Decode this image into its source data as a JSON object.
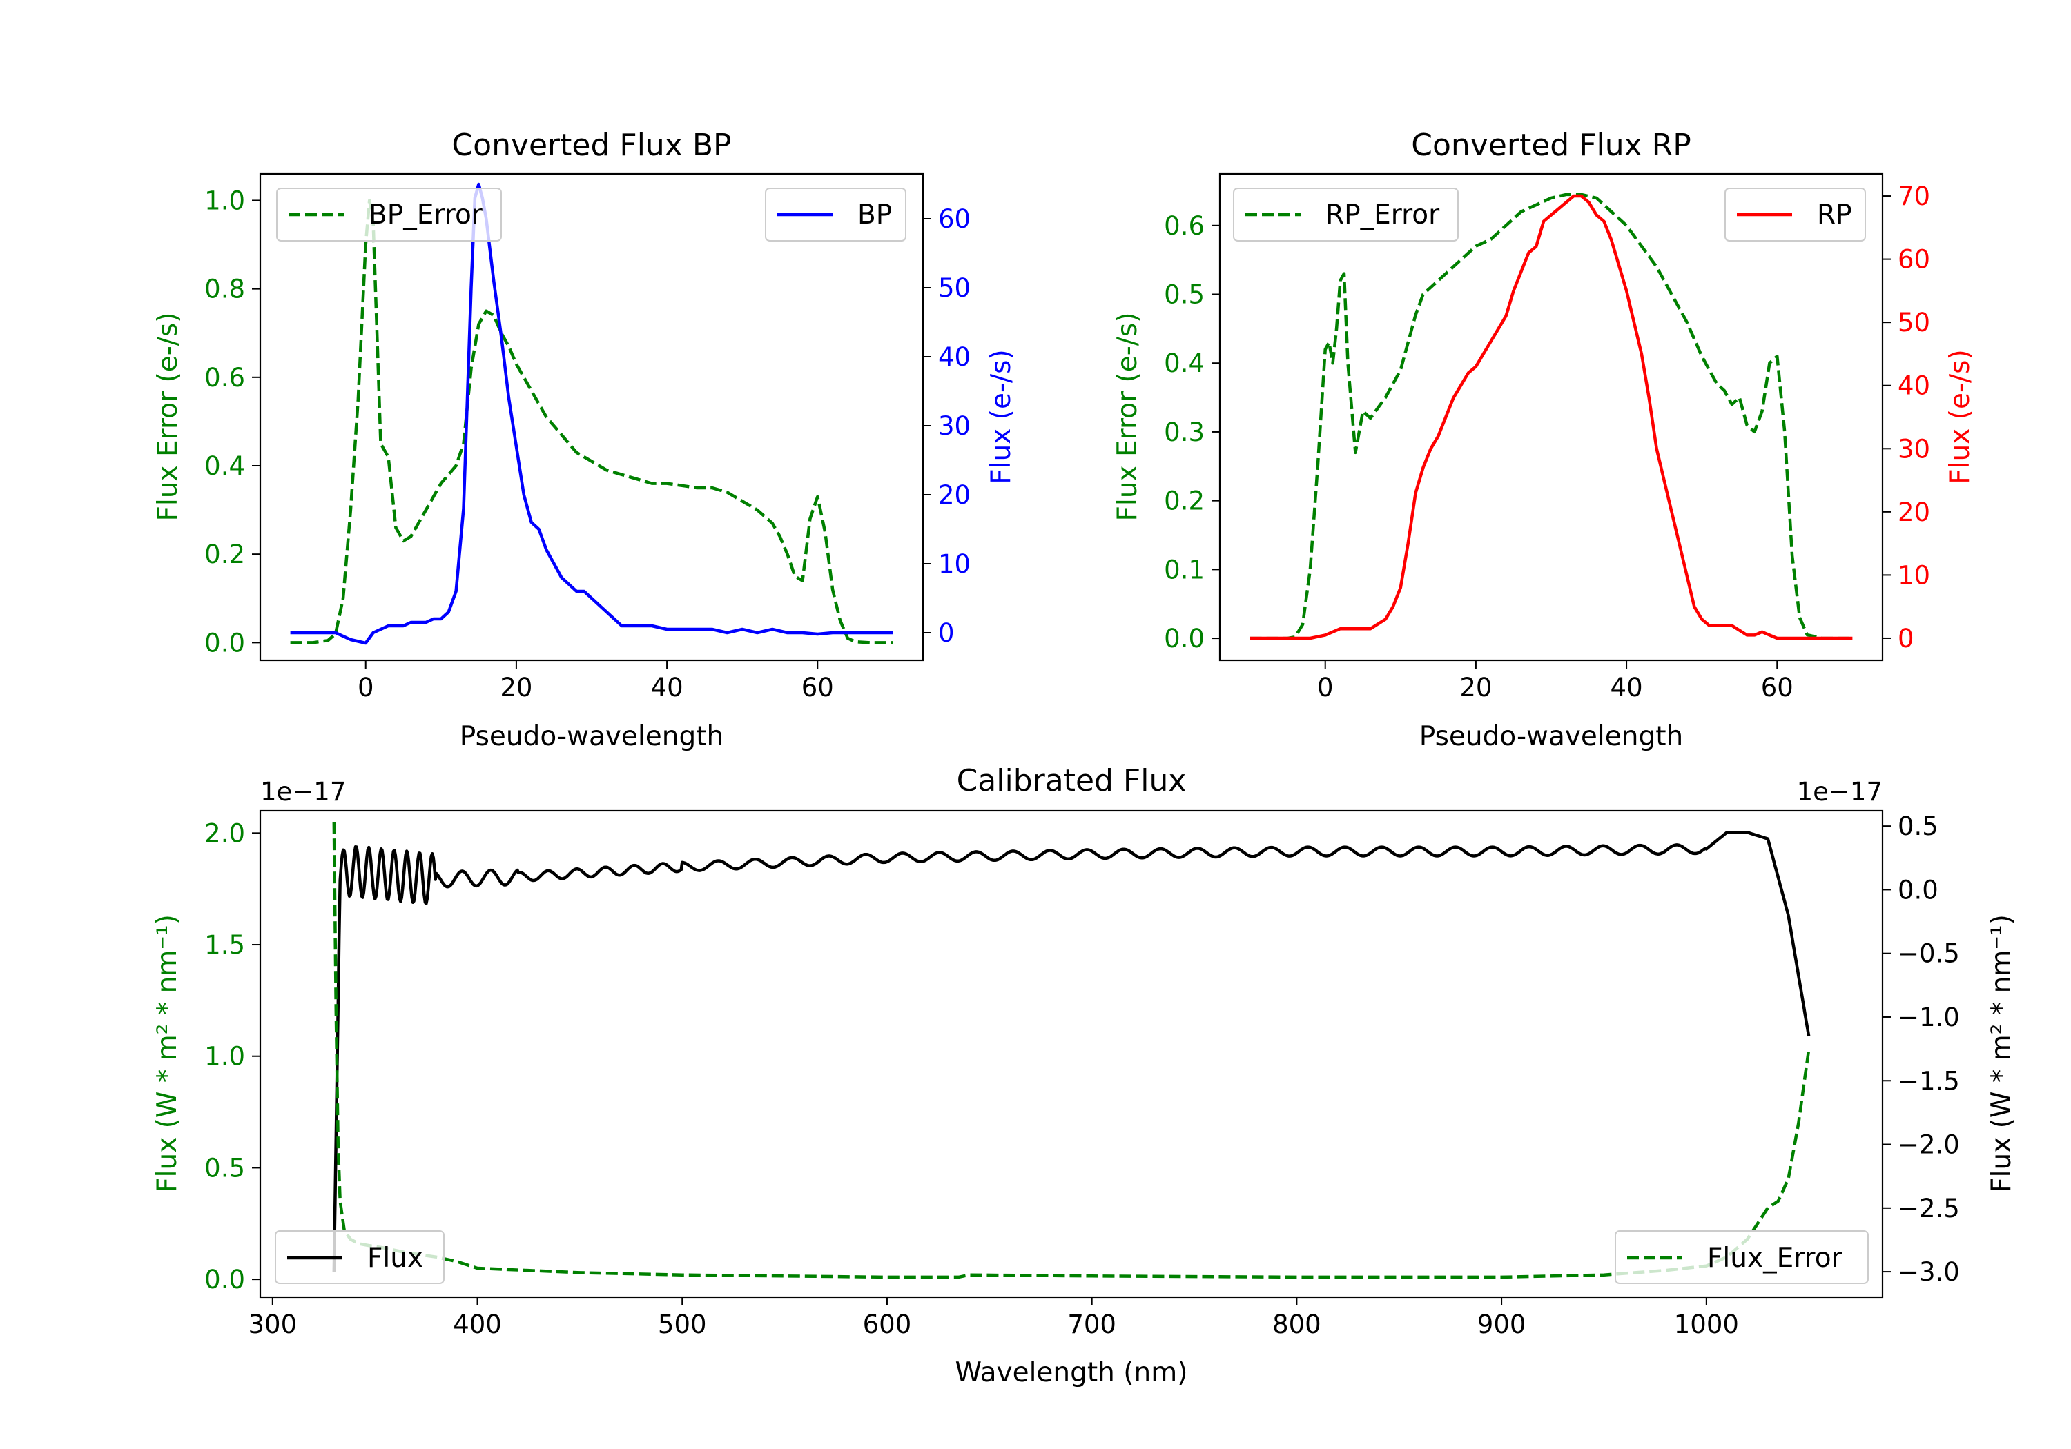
{
  "chart_data": [
    {
      "id": "bp",
      "type": "line",
      "title": "Converted Flux BP",
      "xlabel": "Pseudo-wavelength",
      "xlim": [
        -14,
        74
      ],
      "xticks": [
        0,
        20,
        40,
        60
      ],
      "left_axis": {
        "label": "Flux Error (e-/s)",
        "color": "#008000",
        "lim": [
          -0.04,
          1.06
        ],
        "ticks": [
          0.0,
          0.2,
          0.4,
          0.6,
          0.8,
          1.0
        ],
        "tick_labels": [
          "0.0",
          "0.2",
          "0.4",
          "0.6",
          "0.8",
          "1.0"
        ]
      },
      "right_axis": {
        "label": "Flux (e-/s)",
        "color": "#0000ff",
        "lim": [
          -4,
          66.5
        ],
        "ticks": [
          0,
          10,
          20,
          30,
          40,
          50,
          60
        ],
        "tick_labels": [
          "0",
          "10",
          "20",
          "30",
          "40",
          "50",
          "60"
        ]
      },
      "series": [
        {
          "name": "BP_Error",
          "axis": "left",
          "color": "#008000",
          "dash": true,
          "x": [
            -10,
            -7,
            -5,
            -4,
            -3,
            -2,
            -1,
            0,
            0.5,
            1,
            1.5,
            2,
            3,
            4,
            5,
            6,
            7,
            8,
            9,
            10,
            11,
            12,
            13,
            14,
            15,
            16,
            17,
            18,
            19,
            20,
            21,
            22,
            23,
            24,
            25,
            26,
            27,
            28,
            30,
            32,
            34,
            36,
            38,
            40,
            42,
            44,
            46,
            48,
            50,
            52,
            54,
            55,
            56,
            57,
            58,
            59,
            60,
            61,
            62,
            63,
            64,
            65,
            67,
            70
          ],
          "y": [
            0.0,
            0.0,
            0.005,
            0.02,
            0.1,
            0.3,
            0.55,
            0.9,
            1.0,
            0.95,
            0.7,
            0.45,
            0.42,
            0.26,
            0.23,
            0.24,
            0.27,
            0.3,
            0.33,
            0.36,
            0.38,
            0.4,
            0.45,
            0.62,
            0.72,
            0.75,
            0.74,
            0.7,
            0.67,
            0.63,
            0.6,
            0.57,
            0.54,
            0.51,
            0.49,
            0.47,
            0.45,
            0.43,
            0.41,
            0.39,
            0.38,
            0.37,
            0.36,
            0.36,
            0.355,
            0.35,
            0.35,
            0.34,
            0.32,
            0.3,
            0.27,
            0.24,
            0.2,
            0.15,
            0.14,
            0.28,
            0.33,
            0.25,
            0.12,
            0.05,
            0.01,
            0.002,
            0.0,
            0.0
          ]
        },
        {
          "name": "BP",
          "axis": "right",
          "color": "#0000ff",
          "dash": false,
          "x": [
            -10,
            -6,
            -4,
            -2,
            0,
            1,
            2,
            3,
            5,
            6,
            7,
            8,
            9,
            10,
            11,
            12,
            13,
            14,
            14.5,
            15,
            15.5,
            16,
            17,
            18,
            19,
            20,
            21,
            22,
            23,
            24,
            25,
            26,
            27,
            28,
            29,
            30,
            31,
            32,
            33,
            34,
            35,
            36,
            37,
            38,
            40,
            42,
            44,
            46,
            48,
            50,
            52,
            54,
            56,
            58,
            60,
            62,
            64,
            66,
            68,
            70
          ],
          "y": [
            0,
            0,
            0,
            -1,
            -1.5,
            0,
            0.5,
            1,
            1,
            1.5,
            1.5,
            1.5,
            2,
            2,
            3,
            6,
            18,
            50,
            63,
            65,
            63,
            60,
            51,
            43,
            34,
            27,
            20,
            16,
            15,
            12,
            10,
            8,
            7,
            6,
            6,
            5,
            4,
            3,
            2,
            1,
            1,
            1,
            1,
            1,
            0.5,
            0.5,
            0.5,
            0.5,
            0,
            0.5,
            0,
            0.5,
            0,
            0,
            -0.2,
            0,
            0,
            0,
            0,
            0
          ]
        }
      ],
      "legends": [
        {
          "text": "BP_Error",
          "position": "upper left"
        },
        {
          "text": "BP",
          "position": "upper right"
        }
      ]
    },
    {
      "id": "rp",
      "type": "line",
      "title": "Converted Flux RP",
      "xlabel": "Pseudo-wavelength",
      "xlim": [
        -14,
        74
      ],
      "xticks": [
        0,
        20,
        40,
        60
      ],
      "left_axis": {
        "label": "Flux Error (e-/s)",
        "color": "#008000",
        "lim": [
          -0.032,
          0.675
        ],
        "ticks": [
          0.0,
          0.1,
          0.2,
          0.3,
          0.4,
          0.5,
          0.6
        ],
        "tick_labels": [
          "0.0",
          "0.1",
          "0.2",
          "0.3",
          "0.4",
          "0.5",
          "0.6"
        ]
      },
      "right_axis": {
        "label": "Flux (e-/s)",
        "color": "#ff0000",
        "lim": [
          -3.5,
          73.5
        ],
        "ticks": [
          0,
          10,
          20,
          30,
          40,
          50,
          60,
          70
        ],
        "tick_labels": [
          "0",
          "10",
          "20",
          "30",
          "40",
          "50",
          "60",
          "70"
        ]
      },
      "series": [
        {
          "name": "RP_Error",
          "axis": "left",
          "color": "#008000",
          "dash": true,
          "x": [
            -10,
            -5,
            -4,
            -3,
            -2,
            -1,
            0,
            0.5,
            1,
            1.5,
            2,
            2.5,
            3,
            4,
            5,
            6,
            8,
            10,
            11,
            12,
            13,
            14,
            16,
            18,
            20,
            22,
            24,
            26,
            28,
            30,
            32,
            34,
            36,
            38,
            40,
            42,
            44,
            46,
            48,
            50,
            52,
            53,
            54,
            55,
            56,
            57,
            58,
            59,
            60,
            61,
            62,
            63,
            64,
            66,
            70
          ],
          "y": [
            0.0,
            0.0,
            0.002,
            0.02,
            0.1,
            0.25,
            0.42,
            0.43,
            0.4,
            0.45,
            0.52,
            0.53,
            0.4,
            0.27,
            0.33,
            0.32,
            0.35,
            0.39,
            0.43,
            0.47,
            0.5,
            0.51,
            0.53,
            0.55,
            0.57,
            0.58,
            0.6,
            0.62,
            0.63,
            0.64,
            0.645,
            0.645,
            0.64,
            0.62,
            0.6,
            0.57,
            0.54,
            0.5,
            0.46,
            0.41,
            0.37,
            0.36,
            0.34,
            0.35,
            0.31,
            0.3,
            0.33,
            0.4,
            0.41,
            0.3,
            0.12,
            0.03,
            0.005,
            0.0,
            0.0
          ]
        },
        {
          "name": "RP",
          "axis": "right",
          "color": "#ff0000",
          "dash": false,
          "x": [
            -10,
            -5,
            -2,
            0,
            1,
            2,
            4,
            6,
            8,
            9,
            10,
            11,
            12,
            13,
            14,
            15,
            16,
            17,
            18,
            19,
            20,
            21,
            22,
            23,
            24,
            25,
            26,
            27,
            28,
            29,
            30,
            31,
            32,
            33,
            34,
            35,
            36,
            37,
            38,
            39,
            40,
            41,
            42,
            43,
            44,
            45,
            46,
            47,
            48,
            49,
            50,
            51,
            52,
            54,
            56,
            57,
            58,
            59,
            60,
            62,
            66,
            70
          ],
          "y": [
            0,
            0,
            0,
            0.5,
            1,
            1.5,
            1.5,
            1.5,
            3,
            5,
            8,
            15,
            23,
            27,
            30,
            32,
            35,
            38,
            40,
            42,
            43,
            45,
            47,
            49,
            51,
            55,
            58,
            61,
            62,
            66,
            67,
            68,
            69,
            70,
            70,
            69,
            67,
            66,
            63,
            59,
            55,
            50,
            45,
            38,
            30,
            25,
            20,
            15,
            10,
            5,
            3,
            2,
            2,
            2,
            0.5,
            0.5,
            1,
            0.5,
            0,
            0,
            0,
            0
          ]
        }
      ],
      "legends": [
        {
          "text": "RP_Error",
          "position": "upper left"
        },
        {
          "text": "RP",
          "position": "upper right"
        }
      ]
    },
    {
      "id": "cal",
      "type": "line",
      "title": "Calibrated Flux",
      "xlabel": "Wavelength (nm)",
      "xlim": [
        294,
        1086
      ],
      "xticks": [
        300,
        400,
        500,
        600,
        700,
        800,
        900,
        1000
      ],
      "left_axis": {
        "label": "Flux (W * m² * nm⁻¹)",
        "color": "#008000",
        "offset_text": "1e−17",
        "lim": [
          -0.08,
          2.1
        ],
        "ticks": [
          0.0,
          0.5,
          1.0,
          1.5,
          2.0
        ],
        "tick_labels": [
          "0.0",
          "0.5",
          "1.0",
          "1.5",
          "2.0"
        ]
      },
      "right_axis": {
        "label": "Flux (W * m² * nm⁻¹)",
        "color": "#000000",
        "offset_text": "1e−17",
        "lim": [
          -3.2,
          0.62
        ],
        "ticks": [
          0.5,
          0.0,
          -0.5,
          -1.0,
          -1.5,
          -2.0,
          -2.5,
          -3.0
        ],
        "tick_labels": [
          "0.5",
          "0.0",
          "−0.5",
          "−1.0",
          "−1.5",
          "−2.0",
          "−2.5",
          "−3.0"
        ]
      },
      "series": [
        {
          "name": "Flux",
          "axis": "right",
          "color": "#000000",
          "dash": false,
          "x_range": [
            330,
            1050
          ],
          "y_anchor_x": [
            330,
            336,
            380,
            420,
            500,
            600,
            700,
            800,
            900,
            1000,
            1010,
            1020,
            1030,
            1040,
            1050
          ],
          "y_anchor": [
            0.0,
            0.15,
            0.08,
            0.1,
            0.18,
            0.25,
            0.28,
            0.3,
            0.3,
            0.32,
            0.45,
            0.45,
            0.4,
            -0.2,
            -1.15
          ],
          "y_start_drop": [
            330,
            -3.0
          ]
        },
        {
          "name": "Flux_Error",
          "axis": "left",
          "color": "#008000",
          "dash": true,
          "x": [
            330,
            331,
            332,
            333,
            335,
            338,
            342,
            348,
            355,
            365,
            380,
            390,
            400,
            450,
            500,
            600,
            635,
            640,
            700,
            800,
            900,
            950,
            980,
            1000,
            1010,
            1020,
            1025,
            1030,
            1035,
            1040,
            1045,
            1050
          ],
          "y": [
            2.05,
            1.2,
            0.6,
            0.35,
            0.22,
            0.18,
            0.16,
            0.15,
            0.14,
            0.12,
            0.1,
            0.08,
            0.05,
            0.03,
            0.02,
            0.01,
            0.01,
            0.02,
            0.015,
            0.01,
            0.01,
            0.02,
            0.04,
            0.06,
            0.1,
            0.18,
            0.25,
            0.32,
            0.35,
            0.45,
            0.7,
            1.03
          ]
        }
      ],
      "legends": [
        {
          "text": "Flux",
          "position": "lower left"
        },
        {
          "text": "Flux_Error",
          "position": "lower right"
        }
      ]
    }
  ]
}
